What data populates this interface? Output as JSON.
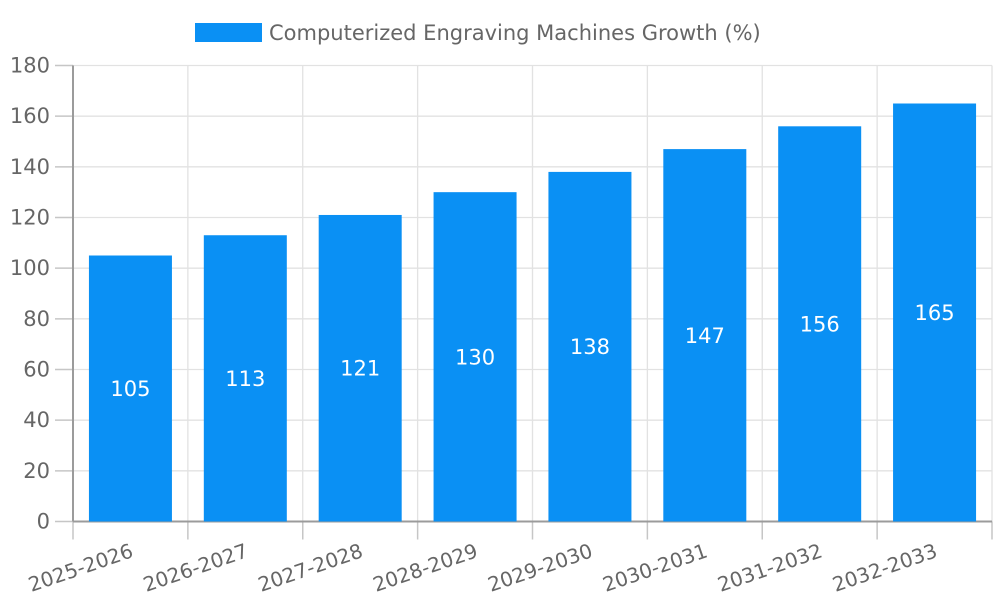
{
  "legend": {
    "label": "Computerized Engraving Machines Growth (%)"
  },
  "chart_data": {
    "type": "bar",
    "title": "Computerized Engraving Machines Growth (%)",
    "categories": [
      "2025-2026",
      "2026-2027",
      "2027-2028",
      "2028-2029",
      "2029-2030",
      "2030-2031",
      "2031-2032",
      "2032-2033"
    ],
    "values": [
      105,
      113,
      121,
      130,
      138,
      147,
      156,
      165
    ],
    "xlabel": "",
    "ylabel": "",
    "ylim": [
      0,
      180
    ],
    "ytick_step": 20,
    "grid": true,
    "legend_position": "top-center",
    "value_labels": "inside-center",
    "x_label_rotation_deg": -19,
    "colors": {
      "bar": "#0a90f4",
      "grid": "#e2e2e2",
      "tick": "#c6c6c6",
      "axis": "#9b9b9b",
      "tick_text": "#666666",
      "legend_text": "#666666",
      "bar_label_text": "#ffffff",
      "background": "#ffffff"
    }
  }
}
